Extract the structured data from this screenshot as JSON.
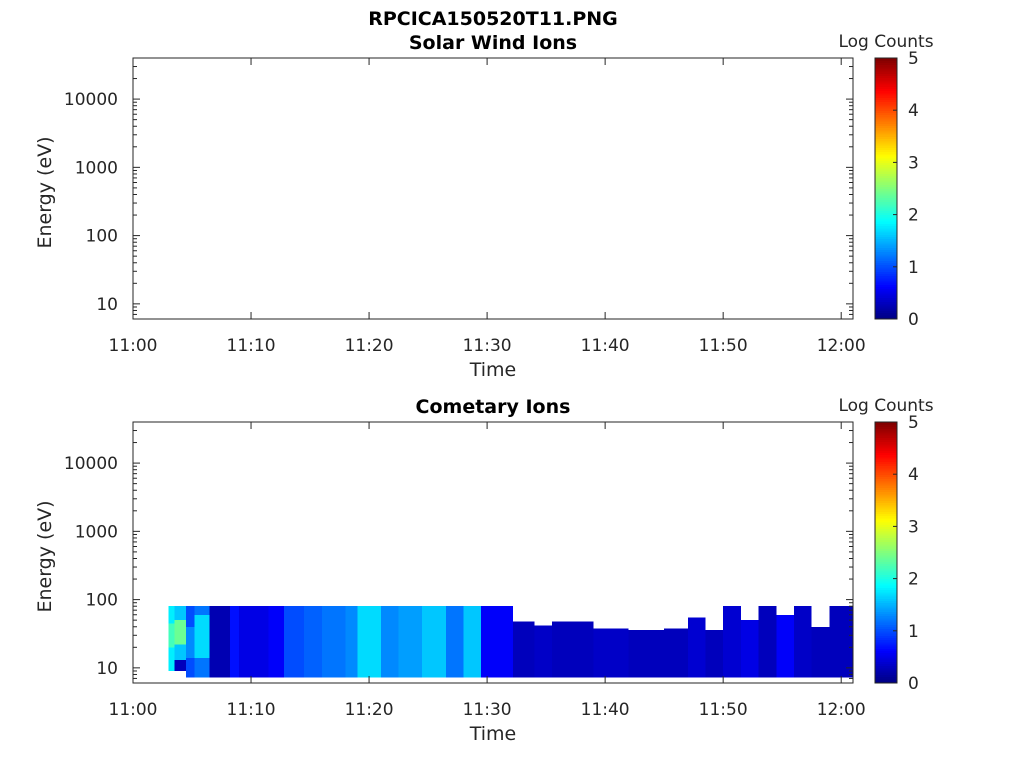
{
  "figure_title": "RPCICA150520T11.PNG",
  "colormap": [
    "#00007f",
    "#0000ff",
    "#007fff",
    "#00ffff",
    "#7fff7f",
    "#ffff00",
    "#ff7f00",
    "#ff0000",
    "#7f0000"
  ],
  "chart_data": [
    {
      "type": "heatmap",
      "title": "Solar Wind Ions",
      "xlabel": "Time",
      "ylabel": "Energy (eV)",
      "x_ticks": [
        "11:00",
        "11:10",
        "11:20",
        "11:30",
        "11:40",
        "11:50",
        "12:00"
      ],
      "x_tick_minutes": [
        0,
        10,
        20,
        30,
        40,
        50,
        60
      ],
      "xlim_minutes": [
        0,
        61
      ],
      "y_scale": "log",
      "y_ticks": [
        "10",
        "100",
        "1000",
        "10000"
      ],
      "y_tick_values": [
        10,
        100,
        1000,
        10000
      ],
      "ylim": [
        6,
        40000
      ],
      "colorbar_label": "Log Counts",
      "colorbar_ticks": [
        "0",
        "1",
        "2",
        "3",
        "4",
        "5"
      ],
      "clim": [
        0,
        5
      ],
      "cells": []
    },
    {
      "type": "heatmap",
      "title": "Cometary Ions",
      "xlabel": "Time",
      "ylabel": "Energy (eV)",
      "x_ticks": [
        "11:00",
        "11:10",
        "11:20",
        "11:30",
        "11:40",
        "11:50",
        "12:00"
      ],
      "x_tick_minutes": [
        0,
        10,
        20,
        30,
        40,
        50,
        60
      ],
      "xlim_minutes": [
        0,
        61
      ],
      "y_scale": "log",
      "y_ticks": [
        "10",
        "100",
        "1000",
        "10000"
      ],
      "y_tick_values": [
        10,
        100,
        1000,
        10000
      ],
      "ylim": [
        6,
        40000
      ],
      "colorbar_label": "Log Counts",
      "colorbar_ticks": [
        "0",
        "1",
        "2",
        "3",
        "4",
        "5"
      ],
      "clim": [
        0,
        5
      ],
      "cells": [
        {
          "t0": 3.0,
          "t1": 3.5,
          "e0": 9,
          "e1": 80,
          "v": 1.8
        },
        {
          "t0": 3.0,
          "t1": 3.5,
          "e0": 20,
          "e1": 45,
          "v": 2.2
        },
        {
          "t0": 3.5,
          "t1": 4.5,
          "e0": 13,
          "e1": 80,
          "v": 1.6
        },
        {
          "t0": 3.5,
          "t1": 4.5,
          "e0": 22,
          "e1": 50,
          "v": 2.4
        },
        {
          "t0": 3.5,
          "t1": 4.5,
          "e0": 9,
          "e1": 13,
          "v": 0.3
        },
        {
          "t0": 4.5,
          "t1": 5.2,
          "e0": 7.2,
          "e1": 80,
          "v": 1.0
        },
        {
          "t0": 4.5,
          "t1": 5.2,
          "e0": 14,
          "e1": 40,
          "v": 1.3
        },
        {
          "t0": 5.2,
          "t1": 6.5,
          "e0": 7.2,
          "e1": 80,
          "v": 1.2
        },
        {
          "t0": 5.2,
          "t1": 6.5,
          "e0": 14,
          "e1": 60,
          "v": 1.7
        },
        {
          "t0": 6.5,
          "t1": 8.2,
          "e0": 7.2,
          "e1": 80,
          "v": 0.25
        },
        {
          "t0": 8.2,
          "t1": 9.0,
          "e0": 7.2,
          "e1": 80,
          "v": 0.7
        },
        {
          "t0": 9.0,
          "t1": 11.5,
          "e0": 7.2,
          "e1": 80,
          "v": 0.5
        },
        {
          "t0": 11.5,
          "t1": 12.8,
          "e0": 7.2,
          "e1": 80,
          "v": 0.6
        },
        {
          "t0": 12.8,
          "t1": 14.5,
          "e0": 7.2,
          "e1": 80,
          "v": 1.0
        },
        {
          "t0": 14.5,
          "t1": 16.0,
          "e0": 7.2,
          "e1": 80,
          "v": 1.1
        },
        {
          "t0": 16.0,
          "t1": 18.0,
          "e0": 7.2,
          "e1": 80,
          "v": 1.2
        },
        {
          "t0": 18.0,
          "t1": 19.0,
          "e0": 7.2,
          "e1": 80,
          "v": 1.3
        },
        {
          "t0": 19.0,
          "t1": 21.0,
          "e0": 7.2,
          "e1": 80,
          "v": 1.7
        },
        {
          "t0": 21.0,
          "t1": 22.5,
          "e0": 7.2,
          "e1": 80,
          "v": 1.3
        },
        {
          "t0": 22.5,
          "t1": 24.5,
          "e0": 7.2,
          "e1": 80,
          "v": 1.4
        },
        {
          "t0": 24.5,
          "t1": 26.5,
          "e0": 7.2,
          "e1": 80,
          "v": 1.6
        },
        {
          "t0": 26.5,
          "t1": 28.0,
          "e0": 7.2,
          "e1": 80,
          "v": 1.2
        },
        {
          "t0": 28.0,
          "t1": 29.5,
          "e0": 7.2,
          "e1": 80,
          "v": 1.6
        },
        {
          "t0": 29.5,
          "t1": 32.2,
          "e0": 7.2,
          "e1": 80,
          "v": 0.6
        },
        {
          "t0": 32.2,
          "t1": 34.0,
          "e0": 7.2,
          "e1": 48,
          "v": 0.3
        },
        {
          "t0": 34.0,
          "t1": 35.5,
          "e0": 7.2,
          "e1": 42,
          "v": 0.35
        },
        {
          "t0": 35.5,
          "t1": 39.0,
          "e0": 7.2,
          "e1": 48,
          "v": 0.3
        },
        {
          "t0": 39.0,
          "t1": 42.0,
          "e0": 7.2,
          "e1": 38,
          "v": 0.35
        },
        {
          "t0": 42.0,
          "t1": 45.0,
          "e0": 7.2,
          "e1": 36,
          "v": 0.3
        },
        {
          "t0": 45.0,
          "t1": 47.0,
          "e0": 7.2,
          "e1": 38,
          "v": 0.3
        },
        {
          "t0": 47.0,
          "t1": 48.5,
          "e0": 7.2,
          "e1": 55,
          "v": 0.4
        },
        {
          "t0": 48.5,
          "t1": 50.0,
          "e0": 7.2,
          "e1": 36,
          "v": 0.3
        },
        {
          "t0": 50.0,
          "t1": 51.5,
          "e0": 7.2,
          "e1": 80,
          "v": 0.4
        },
        {
          "t0": 51.5,
          "t1": 53.0,
          "e0": 7.2,
          "e1": 50,
          "v": 0.5
        },
        {
          "t0": 53.0,
          "t1": 54.5,
          "e0": 7.2,
          "e1": 80,
          "v": 0.3
        },
        {
          "t0": 54.5,
          "t1": 56.0,
          "e0": 7.2,
          "e1": 60,
          "v": 0.6
        },
        {
          "t0": 56.0,
          "t1": 57.5,
          "e0": 7.2,
          "e1": 80,
          "v": 0.35
        },
        {
          "t0": 57.5,
          "t1": 59.0,
          "e0": 7.2,
          "e1": 40,
          "v": 0.3
        },
        {
          "t0": 59.0,
          "t1": 61.0,
          "e0": 7.2,
          "e1": 80,
          "v": 0.3
        }
      ]
    }
  ]
}
